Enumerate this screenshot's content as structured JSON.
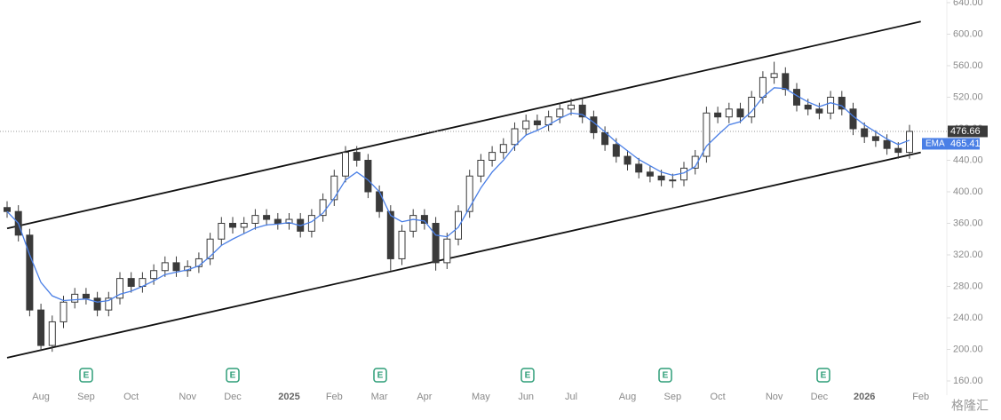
{
  "chart_data": {
    "type": "candlestick",
    "categories": [
      null,
      null,
      null,
      "Aug",
      null,
      null,
      null,
      "Sep",
      null,
      null,
      null,
      "Oct",
      null,
      null,
      null,
      null,
      "Nov",
      null,
      null,
      null,
      "Dec",
      null,
      null,
      null,
      null,
      "2025",
      null,
      null,
      null,
      "Feb",
      null,
      null,
      null,
      "Mar",
      null,
      null,
      null,
      "Apr",
      null,
      null,
      null,
      null,
      "May",
      null,
      null,
      null,
      "Jun",
      null,
      null,
      null,
      "Jul",
      null,
      null,
      null,
      null,
      "Aug",
      null,
      null,
      null,
      "Sep",
      null,
      null,
      null,
      "Oct",
      null,
      null,
      null,
      null,
      "Nov",
      null,
      null,
      null,
      "Dec",
      null,
      null,
      null,
      "2026",
      null,
      null,
      null,
      null,
      "Feb"
    ],
    "open": [
      380,
      375,
      345,
      250,
      205,
      235,
      260,
      270,
      265,
      250,
      265,
      290,
      280,
      290,
      300,
      310,
      300,
      305,
      315,
      340,
      360,
      355,
      360,
      370,
      365,
      360,
      365,
      350,
      370,
      390,
      420,
      450,
      440,
      400,
      375,
      315,
      350,
      370,
      360,
      310,
      340,
      375,
      420,
      440,
      450,
      460,
      480,
      490,
      485,
      495,
      505,
      510,
      495,
      475,
      460,
      445,
      435,
      425,
      420,
      415,
      415,
      430,
      445,
      500,
      495,
      505,
      495,
      520,
      545,
      550,
      530,
      510,
      505,
      500,
      520,
      505,
      480,
      470,
      465,
      455,
      450,
      null
    ],
    "high": [
      388,
      383,
      353,
      258,
      243,
      268,
      278,
      278,
      273,
      273,
      298,
      298,
      298,
      308,
      318,
      318,
      313,
      323,
      348,
      368,
      368,
      368,
      378,
      378,
      373,
      373,
      373,
      378,
      398,
      428,
      458,
      458,
      448,
      408,
      383,
      358,
      378,
      378,
      368,
      348,
      383,
      428,
      448,
      458,
      468,
      488,
      498,
      498,
      503,
      513,
      518,
      518,
      503,
      483,
      468,
      453,
      443,
      433,
      428,
      423,
      438,
      453,
      508,
      508,
      513,
      513,
      528,
      553,
      565,
      558,
      538,
      518,
      513,
      528,
      528,
      513,
      488,
      478,
      473,
      463,
      485,
      null
    ],
    "low": [
      367,
      337,
      242,
      198,
      197,
      227,
      252,
      257,
      242,
      242,
      257,
      272,
      272,
      282,
      292,
      292,
      292,
      297,
      307,
      332,
      347,
      347,
      352,
      357,
      352,
      352,
      342,
      342,
      362,
      382,
      412,
      432,
      392,
      367,
      300,
      307,
      342,
      352,
      300,
      302,
      332,
      367,
      412,
      432,
      442,
      452,
      472,
      477,
      477,
      487,
      497,
      487,
      467,
      452,
      437,
      427,
      417,
      412,
      407,
      405,
      407,
      422,
      437,
      487,
      487,
      487,
      487,
      512,
      537,
      522,
      502,
      497,
      492,
      492,
      497,
      472,
      462,
      457,
      447,
      442,
      442,
      null
    ],
    "close": [
      375,
      345,
      250,
      205,
      235,
      260,
      270,
      265,
      250,
      265,
      290,
      280,
      290,
      300,
      310,
      300,
      305,
      315,
      340,
      360,
      355,
      360,
      370,
      365,
      360,
      365,
      350,
      370,
      390,
      420,
      450,
      440,
      400,
      375,
      315,
      350,
      370,
      360,
      310,
      340,
      375,
      420,
      440,
      450,
      460,
      480,
      490,
      485,
      495,
      505,
      510,
      495,
      475,
      460,
      445,
      435,
      425,
      420,
      415,
      415,
      430,
      445,
      500,
      495,
      505,
      495,
      520,
      545,
      550,
      530,
      510,
      505,
      500,
      520,
      505,
      480,
      470,
      465,
      455,
      450,
      476.66,
      null
    ],
    "candle_color": "#3a3a3a",
    "series": [
      {
        "name": "EMA",
        "color": "#4a7fe6",
        "values": [
          375,
          360,
          320,
          285,
          268,
          262,
          263,
          264,
          260,
          262,
          270,
          274,
          280,
          287,
          295,
          298,
          301,
          306,
          318,
          332,
          340,
          347,
          354,
          358,
          359,
          361,
          357,
          362,
          373,
          392,
          415,
          425,
          415,
          400,
          370,
          362,
          365,
          363,
          345,
          343,
          355,
          380,
          405,
          425,
          440,
          458,
          472,
          478,
          485,
          493,
          500,
          498,
          488,
          476,
          463,
          452,
          441,
          433,
          425,
          421,
          424,
          432,
          458,
          472,
          485,
          489,
          502,
          520,
          532,
          531,
          522,
          514,
          508,
          513,
          509,
          496,
          485,
          476,
          467,
          460,
          465.41,
          null
        ]
      }
    ],
    "trendlines": [
      {
        "color": "#111111",
        "values": [
          353.5,
          616
        ]
      },
      {
        "color": "#111111",
        "values": [
          189.5,
          450
        ]
      }
    ],
    "ylim": [
      160,
      640
    ],
    "yticks": [
      {
        "value": 160,
        "label": "160.00"
      },
      {
        "value": 200,
        "label": "200.00"
      },
      {
        "value": 240,
        "label": "240.00"
      },
      {
        "value": 280,
        "label": "280.00"
      },
      {
        "value": 320,
        "label": "320.00"
      },
      {
        "value": 360,
        "label": "360.00"
      },
      {
        "value": 400,
        "label": "400.00"
      },
      {
        "value": 440,
        "label": "440.00"
      },
      {
        "value": 480,
        "label": "480.00"
      },
      {
        "value": 520,
        "label": "520.00"
      },
      {
        "value": 560,
        "label": "560.00"
      },
      {
        "value": 600,
        "label": "600.00"
      },
      {
        "value": 640,
        "label": "640.00"
      }
    ],
    "earnings_label": "E",
    "watermark": "格隆汇"
  }
}
